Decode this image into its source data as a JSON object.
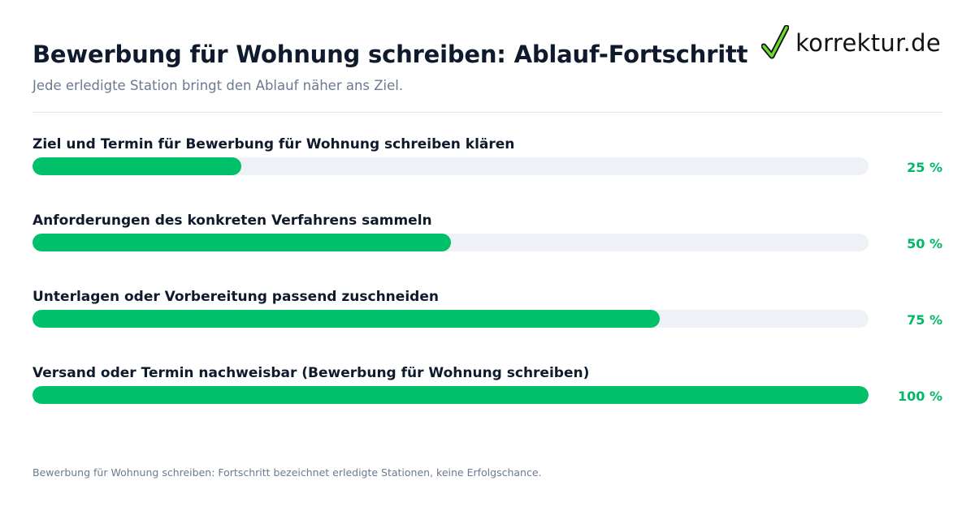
{
  "header": {
    "title": "Bewerbung für Wohnung schreiben: Ablauf-Fortschritt",
    "subtitle": "Jede erledigte Station bringt den Ablauf näher ans Ziel."
  },
  "logo": {
    "text": "korrektur.de",
    "icon": "checkmark-icon",
    "check_color": "#6bdc2e"
  },
  "chart_data": {
    "type": "bar",
    "orientation": "horizontal",
    "title": "Bewerbung für Wohnung schreiben: Ablauf-Fortschritt",
    "subtitle": "Jede erledigte Station bringt den Ablauf näher ans Ziel.",
    "categories": [
      "Ziel und Termin für Bewerbung für Wohnung schreiben klären",
      "Anforderungen des konkreten Verfahrens sammeln",
      "Unterlagen oder Vorbereitung passend zuschneiden",
      "Versand oder Termin nachweisbar (Bewerbung für Wohnung schreiben)"
    ],
    "values": [
      25,
      50,
      75,
      100
    ],
    "value_labels": [
      "25 %",
      "50 %",
      "75 %",
      "100 %"
    ],
    "xlim": [
      0,
      100
    ],
    "bar_color": "#00c16a",
    "track_color": "#eef2f7",
    "label_color": "#00b865",
    "grid": false,
    "legend": "none"
  },
  "footnote": "Bewerbung für Wohnung schreiben: Fortschritt bezeichnet erledigte Stationen, keine Erfolgschance."
}
